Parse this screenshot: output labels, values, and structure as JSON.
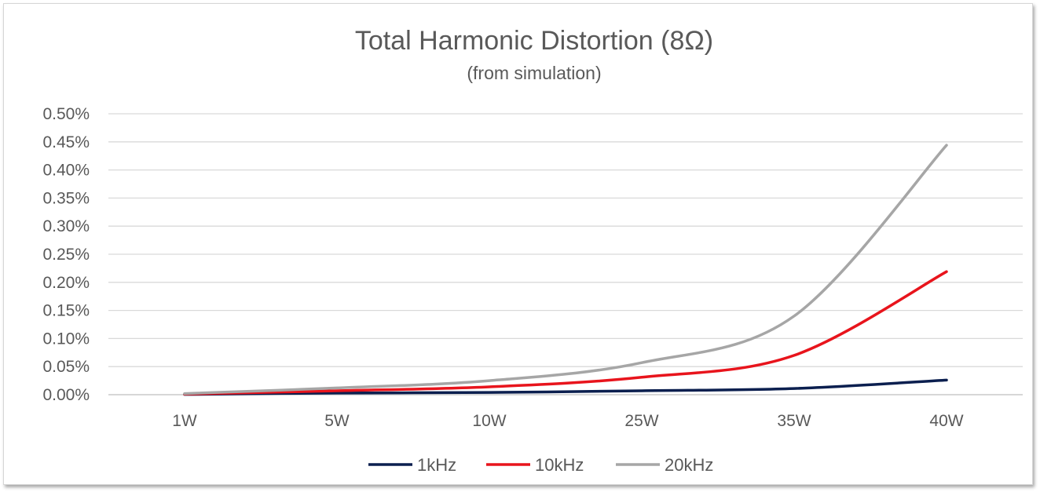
{
  "chart_data": {
    "type": "line",
    "title": "Total Harmonic Distortion (8Ω)",
    "subtitle": "(from simulation)",
    "categories": [
      "1W",
      "5W",
      "10W",
      "25W",
      "35W",
      "40W"
    ],
    "y_tick_labels": [
      "0.00%",
      "0.05%",
      "0.10%",
      "0.15%",
      "0.20%",
      "0.25%",
      "0.30%",
      "0.35%",
      "0.40%",
      "0.45%",
      "0.50%"
    ],
    "ylim": [
      0,
      0.5
    ],
    "y_unit": "%",
    "grid": true,
    "legend_position": "bottom",
    "smooth": true,
    "series": [
      {
        "name": "1kHz",
        "color": "#0b1f4f",
        "values": [
          0.0005,
          0.003,
          0.004,
          0.007,
          0.011,
          0.026
        ]
      },
      {
        "name": "10kHz",
        "color": "#e8141c",
        "values": [
          0.001,
          0.007,
          0.014,
          0.031,
          0.07,
          0.219
        ]
      },
      {
        "name": "20kHz",
        "color": "#a6a6a6",
        "values": [
          0.002,
          0.012,
          0.025,
          0.057,
          0.14,
          0.444
        ]
      }
    ]
  }
}
